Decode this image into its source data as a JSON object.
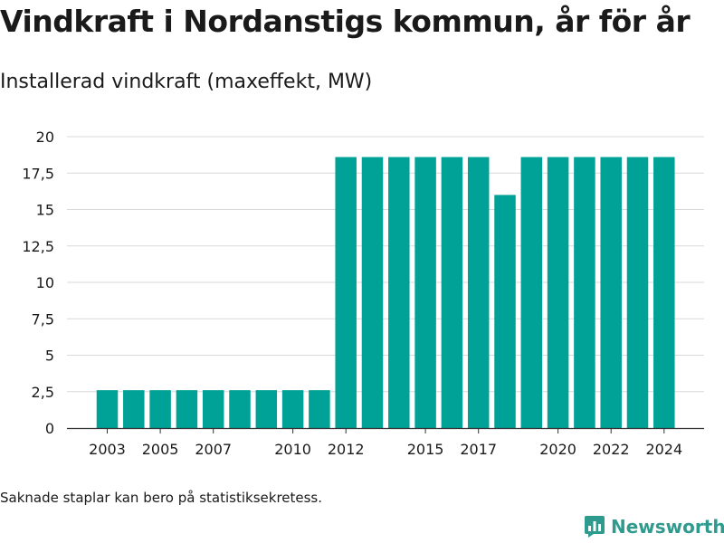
{
  "title": "Vindkraft i Nordanstigs kommun, år för år",
  "subtitle": "Installerad vindkraft (maxeffekt, MW)",
  "note": "Saknade staplar kan bero på statistiksekretess.",
  "brand": {
    "name": "Newsworthy",
    "icon": "newsworthy-logo-icon",
    "color": "#2f9b8f"
  },
  "chart_data": {
    "type": "bar",
    "bar_color": "#00a196",
    "x": [
      2003,
      2004,
      2005,
      2006,
      2007,
      2008,
      2009,
      2010,
      2011,
      2012,
      2013,
      2014,
      2015,
      2016,
      2017,
      2018,
      2019,
      2020,
      2021,
      2022,
      2023,
      2024
    ],
    "values": [
      2.6,
      2.6,
      2.6,
      2.6,
      2.6,
      2.6,
      2.6,
      2.6,
      2.6,
      18.6,
      18.6,
      18.6,
      18.6,
      18.6,
      18.6,
      16.0,
      18.6,
      18.6,
      18.6,
      18.6,
      18.6,
      18.6
    ],
    "x_tick_labels": [
      "2003",
      "2005",
      "2007",
      "2010",
      "2012",
      "2015",
      "2017",
      "2020",
      "2022",
      "2024"
    ],
    "y_ticks": [
      0,
      2.5,
      5,
      7.5,
      10,
      12.5,
      15,
      17.5,
      20
    ],
    "y_tick_labels": [
      "0",
      "2,5",
      "5",
      "7,5",
      "10",
      "12,5",
      "15",
      "17,5",
      "20"
    ],
    "ylim": [
      0,
      20
    ],
    "xlabel": "",
    "ylabel": "",
    "grid": true
  }
}
